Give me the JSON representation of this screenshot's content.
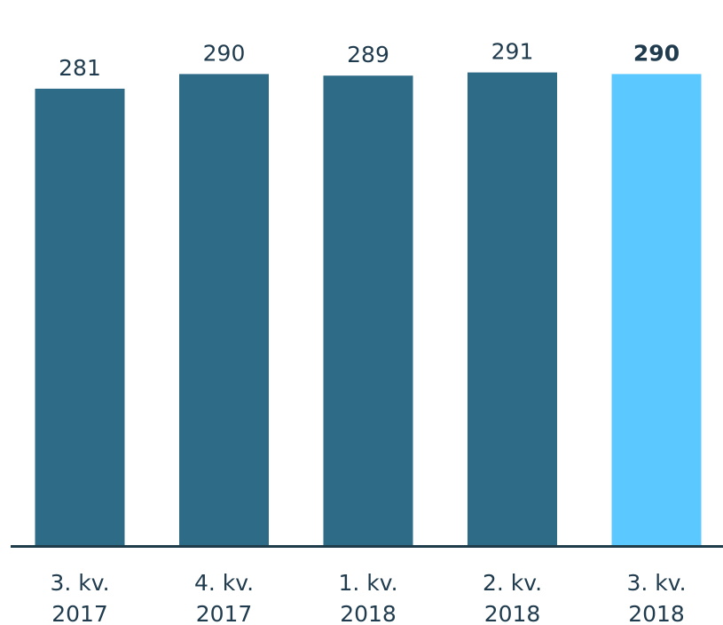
{
  "chart_data": {
    "type": "bar",
    "categories": [
      [
        "3. kv.",
        "2017"
      ],
      [
        "4. kv.",
        "2017"
      ],
      [
        "1. kv.",
        "2018"
      ],
      [
        "2. kv.",
        "2018"
      ],
      [
        "3. kv.",
        "2018"
      ]
    ],
    "values": [
      281,
      290,
      289,
      291,
      290
    ],
    "value_labels": [
      "281",
      "290",
      "289",
      "291",
      "290"
    ],
    "highlight_index": 4,
    "title": "",
    "xlabel": "",
    "ylabel": "",
    "ylim": [
      0,
      300
    ],
    "grid": false,
    "legend": "none",
    "colors": {
      "bar": "#2e6b87",
      "highlight_bar": "#5bc8ff",
      "axis": "#1e3c4a",
      "text": "#1f3b4d"
    }
  }
}
